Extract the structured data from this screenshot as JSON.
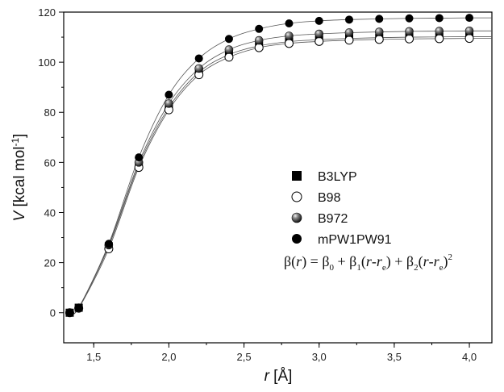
{
  "chart_data": {
    "type": "scatter",
    "xlabel_italic": "r",
    "xlabel_unit": " [Å]",
    "ylabel_italic": "V",
    "ylabel_unit": " [kcal mol",
    "ylabel_exp": "-1",
    "ylabel_close": "]",
    "xlim": [
      1.3,
      4.15
    ],
    "ylim": [
      -12,
      120
    ],
    "xticks": [
      1.5,
      2.0,
      2.5,
      3.0,
      3.5,
      4.0
    ],
    "xtick_labels": [
      "1,5",
      "2,0",
      "2,5",
      "3,0",
      "3,5",
      "4,0"
    ],
    "yticks": [
      0,
      20,
      40,
      60,
      80,
      100,
      120
    ],
    "ytick_labels": [
      "0",
      "20",
      "40",
      "60",
      "80",
      "100",
      "120"
    ],
    "grid": false,
    "legend_position": "middle-right",
    "x": [
      1.34,
      1.4,
      1.6,
      1.8,
      2.0,
      2.2,
      2.4,
      2.6,
      2.8,
      3.0,
      3.2,
      3.4,
      3.6,
      3.8,
      4.0
    ],
    "series": [
      {
        "name": "B3LYP",
        "marker": "filled-square",
        "values": [
          0,
          2,
          26.5,
          59,
          82,
          96,
          103,
          106.5,
          108.2,
          109,
          109.5,
          109.8,
          110,
          110.1,
          110.2
        ]
      },
      {
        "name": "B98",
        "marker": "open-circle",
        "values": [
          0,
          1.8,
          25.5,
          58,
          81,
          95,
          102,
          105.8,
          107.5,
          108.3,
          108.8,
          109.1,
          109.3,
          109.4,
          109.5
        ]
      },
      {
        "name": "B972",
        "marker": "shaded-sphere",
        "values": [
          0,
          2,
          27,
          60,
          83.5,
          97.5,
          105,
          108.7,
          110.5,
          111.3,
          111.8,
          112.1,
          112.3,
          112.4,
          112.5
        ]
      },
      {
        "name": "mPW1PW91",
        "marker": "filled-circle",
        "values": [
          0,
          2,
          27.5,
          62,
          87,
          101.5,
          109.3,
          113.3,
          115.5,
          116.5,
          117,
          117.3,
          117.5,
          117.6,
          117.7
        ]
      }
    ],
    "annotation": {
      "beta": "β",
      "open": "(",
      "r": "r",
      "eq": ") = ",
      "b0": "0",
      "plus": " + ",
      "b1": "1",
      "lp": "(",
      "minus": "-",
      "e": "e",
      "rp": ")",
      "b2": "2",
      "sq": "2"
    }
  }
}
